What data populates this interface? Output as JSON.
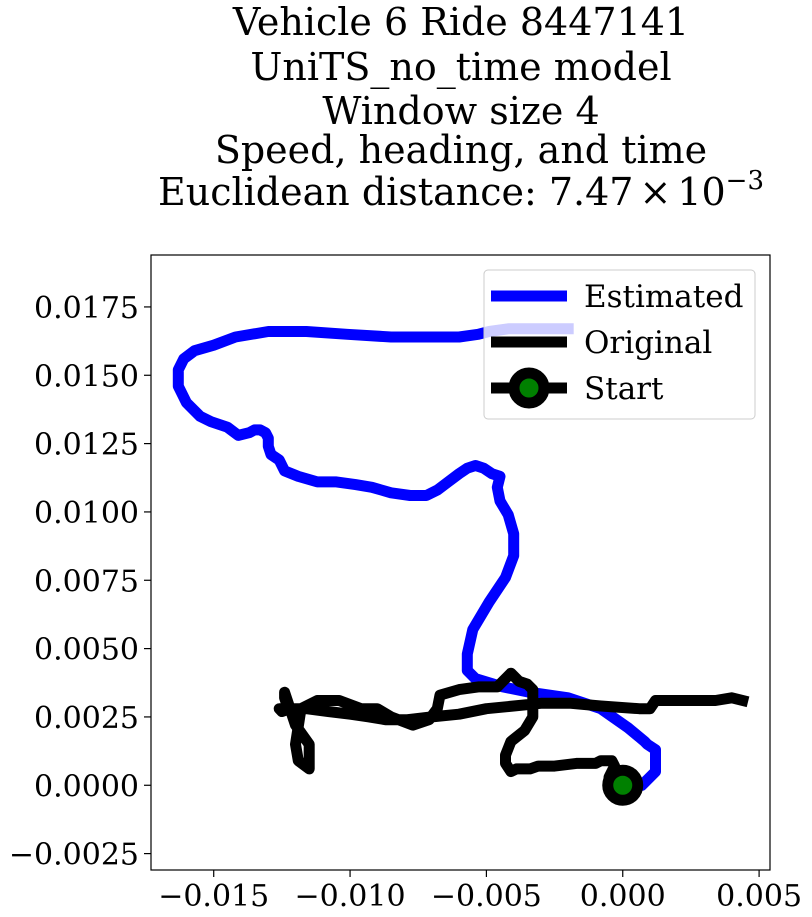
{
  "chart_data": {
    "type": "line",
    "title_lines": [
      "Vehicle 6 Ride 8447141",
      "UniTS_no_time model",
      "Window size 4",
      "Speed, heading, and time"
    ],
    "title_metric_label": "Euclidean distance: ",
    "title_metric_mantissa": "7.47",
    "title_metric_times": "×",
    "title_metric_base": "10",
    "title_metric_exponent": "−3",
    "xlabel": "",
    "ylabel": "",
    "xlim": [
      -0.0173,
      0.0054
    ],
    "ylim": [
      -0.0031,
      0.0194
    ],
    "x_ticks": [
      {
        "value": -0.015,
        "label": "−0.015"
      },
      {
        "value": -0.01,
        "label": "−0.010"
      },
      {
        "value": -0.005,
        "label": "−0.005"
      },
      {
        "value": 0.0,
        "label": "0.000"
      },
      {
        "value": 0.005,
        "label": "0.005"
      }
    ],
    "y_ticks": [
      {
        "value": -0.0025,
        "label": "−0.0025"
      },
      {
        "value": 0.0,
        "label": "0.0000"
      },
      {
        "value": 0.0025,
        "label": "0.0025"
      },
      {
        "value": 0.005,
        "label": "0.0050"
      },
      {
        "value": 0.0075,
        "label": "0.0075"
      },
      {
        "value": 0.01,
        "label": "0.0100"
      },
      {
        "value": 0.0125,
        "label": "0.0125"
      },
      {
        "value": 0.015,
        "label": "0.0150"
      },
      {
        "value": 0.0175,
        "label": "0.0175"
      }
    ],
    "grid": false,
    "legend_position": "top-right",
    "series": [
      {
        "name": "Estimated",
        "color": "#0000ff",
        "x": [
          0.0,
          0.0007,
          0.0012,
          0.0012,
          0.0009,
          0.0008,
          0.0002,
          -0.0008,
          -0.002,
          -0.0034,
          -0.0044,
          -0.0054,
          -0.0057,
          -0.0057,
          -0.0055,
          -0.0049,
          -0.0043,
          -0.004,
          -0.004,
          -0.0042,
          -0.0045,
          -0.0046,
          -0.0045,
          -0.0048,
          -0.0051,
          -0.0054,
          -0.0057,
          -0.006,
          -0.0064,
          -0.0068,
          -0.0072,
          -0.0078,
          -0.0085,
          -0.0092,
          -0.0098,
          -0.0105,
          -0.0112,
          -0.0119,
          -0.0124,
          -0.0126,
          -0.0129,
          -0.013,
          -0.013,
          -0.0131,
          -0.0133,
          -0.0135,
          -0.0137,
          -0.0141,
          -0.0145,
          -0.0151,
          -0.0155,
          -0.016,
          -0.0163,
          -0.0163,
          -0.0163,
          -0.0161,
          -0.0157,
          -0.015,
          -0.0142,
          -0.013,
          -0.0116,
          -0.0101,
          -0.0085,
          -0.0068,
          -0.006,
          -0.0053,
          -0.0049,
          -0.0042,
          -0.0032,
          -0.002
        ],
        "y": [
          0.0,
          0.0,
          0.0005,
          0.0013,
          0.0015,
          0.0016,
          0.0021,
          0.0028,
          0.0032,
          0.0034,
          0.0036,
          0.0039,
          0.0042,
          0.0048,
          0.0057,
          0.0067,
          0.0076,
          0.0084,
          0.0092,
          0.0099,
          0.0104,
          0.0109,
          0.0113,
          0.0114,
          0.0116,
          0.0117,
          0.0116,
          0.0114,
          0.0111,
          0.0108,
          0.0106,
          0.0106,
          0.0107,
          0.0109,
          0.011,
          0.0111,
          0.0111,
          0.0113,
          0.0115,
          0.0119,
          0.0121,
          0.0124,
          0.0127,
          0.0129,
          0.013,
          0.013,
          0.0129,
          0.0128,
          0.0131,
          0.0133,
          0.0135,
          0.014,
          0.0146,
          0.0149,
          0.0152,
          0.0156,
          0.0159,
          0.0161,
          0.0164,
          0.0166,
          0.0166,
          0.0165,
          0.0164,
          0.0164,
          0.0164,
          0.0165,
          0.0166,
          0.0167,
          0.0167,
          0.0167
        ]
      },
      {
        "name": "Original",
        "color": "#000000",
        "x": [
          0.0,
          -0.0004,
          -0.0005,
          -0.0003,
          -0.0004,
          -0.0008,
          -0.001,
          -0.0017,
          -0.0025,
          -0.0031,
          -0.0034,
          -0.0039,
          -0.0041,
          -0.0043,
          -0.0043,
          -0.0041,
          -0.0036,
          -0.0033,
          -0.0033,
          -0.0033,
          -0.0035,
          -0.0038,
          -0.0041,
          -0.0046,
          -0.0053,
          -0.006,
          -0.0067,
          -0.0068,
          -0.0071,
          -0.0077,
          -0.0085,
          -0.009,
          -0.0096,
          -0.0104,
          -0.0112,
          -0.0118,
          -0.012,
          -0.0119,
          -0.0115,
          -0.0115,
          -0.012,
          -0.0123,
          -0.0124,
          -0.0124,
          -0.0123,
          -0.0122,
          -0.0125,
          -0.0126,
          -0.0124,
          -0.0116,
          -0.0108,
          -0.01,
          -0.0093,
          -0.0087,
          -0.0079,
          -0.007,
          -0.006,
          -0.005,
          -0.004,
          -0.003,
          -0.0019,
          -0.0008,
          0.0006,
          0.001,
          0.0012,
          0.0019,
          0.0028,
          0.0034,
          0.004,
          0.0044
        ],
        "y": [
          0.0,
          0.0,
          0.0003,
          0.0007,
          0.0009,
          0.0009,
          0.0008,
          0.0008,
          0.0007,
          0.0007,
          0.0006,
          0.0006,
          0.0005,
          0.0008,
          0.0011,
          0.0016,
          0.002,
          0.0025,
          0.003,
          0.0035,
          0.0037,
          0.0038,
          0.0041,
          0.0036,
          0.0036,
          0.0035,
          0.0033,
          0.0028,
          0.0024,
          0.0022,
          0.0025,
          0.0028,
          0.0028,
          0.0031,
          0.0031,
          0.0028,
          0.0015,
          0.0009,
          0.0006,
          0.0015,
          0.0022,
          0.0031,
          0.0034,
          0.0032,
          0.0029,
          0.0028,
          0.0027,
          0.0028,
          0.0028,
          0.0028,
          0.0027,
          0.0026,
          0.0025,
          0.0024,
          0.0024,
          0.0025,
          0.0026,
          0.0028,
          0.0029,
          0.003,
          0.003,
          0.0029,
          0.0028,
          0.0028,
          0.0031,
          0.0031,
          0.0031,
          0.0031,
          0.0032,
          0.0031
        ]
      }
    ],
    "start_marker": {
      "name": "Start",
      "x": 0.0,
      "y": 0.0,
      "edge_color": "#000000",
      "fill_color": "#008000"
    }
  }
}
